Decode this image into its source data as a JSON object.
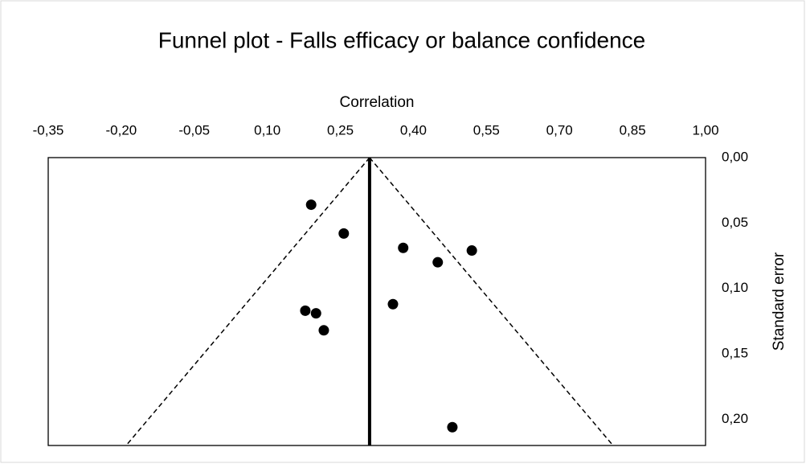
{
  "chart_data": {
    "type": "scatter",
    "title": "Funnel plot - Falls efficacy or balance confidence",
    "xlabel": "Correlation",
    "ylabel": "Standard error",
    "xlim": [
      -0.35,
      1.0
    ],
    "xticks": [
      {
        "value": -0.35,
        "label": "-0,35"
      },
      {
        "value": -0.2,
        "label": "-0,20"
      },
      {
        "value": -0.05,
        "label": "-0,05"
      },
      {
        "value": 0.1,
        "label": "0,10"
      },
      {
        "value": 0.25,
        "label": "0,25"
      },
      {
        "value": 0.4,
        "label": "0,40"
      },
      {
        "value": 0.55,
        "label": "0,55"
      },
      {
        "value": 0.7,
        "label": "0,70"
      },
      {
        "value": 0.85,
        "label": "0,85"
      },
      {
        "value": 1.0,
        "label": "1,00"
      }
    ],
    "ylim": [
      0,
      0.22
    ],
    "y_reversed": true,
    "yticks": [
      {
        "value": 0,
        "label": "0,00"
      },
      {
        "value": 0.05,
        "label": "0,05"
      },
      {
        "value": 0.1,
        "label": "0,10"
      },
      {
        "value": 0.15,
        "label": "0,15"
      },
      {
        "value": 0.2,
        "label": "0,20"
      }
    ],
    "color": "#000000",
    "series": [
      {
        "x": [
          0.19,
          0.257,
          0.379,
          0.45,
          0.52,
          0.358,
          0.178,
          0.2,
          0.216,
          0.48
        ],
        "values": [
          0.036,
          0.058,
          0.069,
          0.08,
          0.071,
          0.112,
          0.117,
          0.119,
          0.132,
          0.206
        ]
      }
    ],
    "reference_lines": [
      {
        "x": [
          0.31,
          0.31
        ],
        "y": [
          0,
          0.22
        ],
        "style": "solid"
      },
      {
        "x": [
          0.31,
          -0.19
        ],
        "y": [
          0,
          0.22
        ],
        "style": "dashed"
      },
      {
        "x": [
          0.31,
          0.81
        ],
        "y": [
          0,
          0.22
        ],
        "style": "dashed"
      }
    ]
  }
}
